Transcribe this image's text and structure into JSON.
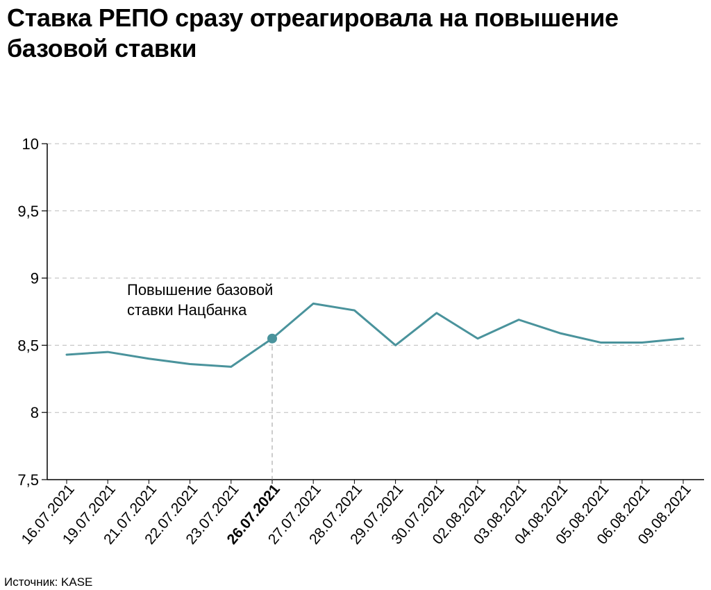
{
  "title": "Ставка РЕПО сразу отреагировала на повышение базовой ставки",
  "source": "Источник: KASE",
  "colors": {
    "line": "#4a939c",
    "grid": "#bbbbbb",
    "axis": "#000000"
  },
  "chart_data": {
    "type": "line",
    "title": "Ставка РЕПО сразу отреагировала на повышение базовой ставки",
    "xlabel": "",
    "ylabel": "",
    "ylim": [
      7.5,
      10
    ],
    "yticks": [
      7.5,
      8,
      8.5,
      9,
      9.5,
      10
    ],
    "ytick_labels": [
      "7,5",
      "8",
      "8,5",
      "9",
      "9,5",
      "10"
    ],
    "grid": true,
    "categories": [
      "16.07.2021",
      "19.07.2021",
      "21.07.2021",
      "22.07.2021",
      "23.07.2021",
      "26.07.2021",
      "27.07.2021",
      "28.07.2021",
      "29.07.2021",
      "30.07.2021",
      "02.08.2021",
      "03.08.2021",
      "04.08.2021",
      "05.08.2021",
      "06.08.2021",
      "09.08.2021"
    ],
    "highlight_category": "26.07.2021",
    "series": [
      {
        "name": "Ставка РЕПО",
        "values": [
          8.43,
          8.45,
          8.4,
          8.36,
          8.34,
          8.55,
          8.81,
          8.76,
          8.5,
          8.74,
          8.55,
          8.69,
          8.59,
          8.52,
          8.52,
          8.55
        ]
      }
    ],
    "annotation": {
      "category": "26.07.2021",
      "text_lines": [
        "Повышение базовой",
        "ставки Нацбанка"
      ]
    }
  }
}
